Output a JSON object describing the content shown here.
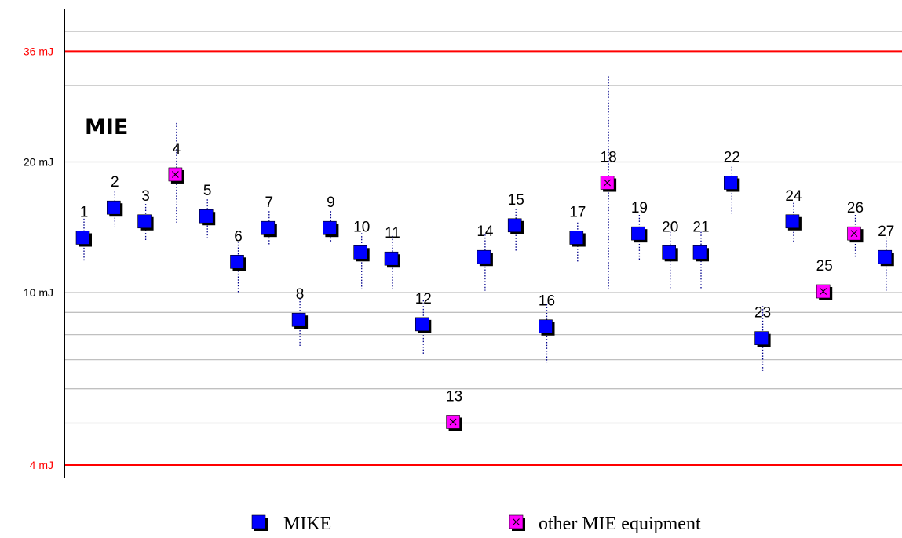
{
  "chart_data": {
    "type": "scatter",
    "title": "MIE",
    "xlabel": "",
    "ylabel": "",
    "y_scale": "log",
    "ylim": [
      3.7,
      56
    ],
    "grid": true,
    "legend_position": "bottom",
    "y_ticks": [
      {
        "value": 4,
        "label": "4 mJ",
        "color": "#ff0000"
      },
      {
        "value": 10,
        "label": "10 mJ",
        "color": "#000000"
      },
      {
        "value": 20,
        "label": "20 mJ",
        "color": "#000000"
      },
      {
        "value": 36,
        "label": "36 mJ",
        "color": "#ff0000"
      }
    ],
    "reference_lines": [
      {
        "value": 4,
        "color": "#ff0000"
      },
      {
        "value": 36,
        "color": "#ff0000"
      }
    ],
    "grid_values": [
      5,
      6,
      7,
      8,
      9,
      10,
      20,
      30,
      40,
      50
    ],
    "series": [
      {
        "name": "MIKE",
        "color": "#0000ff",
        "marker": "square"
      },
      {
        "name": "other MIE equipment",
        "color": "#ff00ff",
        "marker": "square-x"
      }
    ],
    "points": [
      {
        "label": "1",
        "series": 0,
        "y": 13.3,
        "low": 11.8,
        "high": 14.8
      },
      {
        "label": "2",
        "series": 0,
        "y": 15.6,
        "low": 14.2,
        "high": 17.1
      },
      {
        "label": "3",
        "series": 0,
        "y": 14.5,
        "low": 13.1,
        "high": 16.0
      },
      {
        "label": "4",
        "series": 1,
        "y": 18.6,
        "low": 14.5,
        "high": 24.6
      },
      {
        "label": "5",
        "series": 0,
        "y": 14.9,
        "low": 13.4,
        "high": 16.4
      },
      {
        "label": "6",
        "series": 0,
        "y": 11.7,
        "low": 10.0,
        "high": 13.1
      },
      {
        "label": "7",
        "series": 0,
        "y": 14.0,
        "low": 12.9,
        "high": 15.4
      },
      {
        "label": "8",
        "series": 0,
        "y": 8.6,
        "low": 7.5,
        "high": 9.7
      },
      {
        "label": "9",
        "series": 0,
        "y": 14.0,
        "low": 13.1,
        "high": 15.4
      },
      {
        "label": "10",
        "series": 0,
        "y": 12.3,
        "low": 10.2,
        "high": 13.7
      },
      {
        "label": "11",
        "series": 0,
        "y": 11.9,
        "low": 10.2,
        "high": 13.5
      },
      {
        "label": "12",
        "series": 0,
        "y": 8.4,
        "low": 7.2,
        "high": 9.6
      },
      {
        "label": "13",
        "series": 1,
        "y": 5.0,
        "low": 5.0,
        "high": 5.0
      },
      {
        "label": "14",
        "series": 0,
        "y": 12.0,
        "low": 10.1,
        "high": 13.6
      },
      {
        "label": "15",
        "series": 0,
        "y": 14.2,
        "low": 12.4,
        "high": 15.6
      },
      {
        "label": "16",
        "series": 0,
        "y": 8.3,
        "low": 6.9,
        "high": 9.4
      },
      {
        "label": "17",
        "series": 0,
        "y": 13.3,
        "low": 11.7,
        "high": 14.5
      },
      {
        "label": "18",
        "series": 1,
        "y": 17.8,
        "low": 10.1,
        "high": 31.5
      },
      {
        "label": "19",
        "series": 0,
        "y": 13.6,
        "low": 11.9,
        "high": 15.1
      },
      {
        "label": "20",
        "series": 0,
        "y": 12.3,
        "low": 10.2,
        "high": 13.8
      },
      {
        "label": "21",
        "series": 0,
        "y": 12.3,
        "low": 10.2,
        "high": 13.8
      },
      {
        "label": "22",
        "series": 0,
        "y": 17.8,
        "low": 15.2,
        "high": 19.5
      },
      {
        "label": "23",
        "series": 0,
        "y": 7.8,
        "low": 6.6,
        "high": 9.3
      },
      {
        "label": "24",
        "series": 0,
        "y": 14.5,
        "low": 13.1,
        "high": 16.1
      },
      {
        "label": "25",
        "series": 1,
        "y": 10.0,
        "low": 10.0,
        "high": 10.0
      },
      {
        "label": "26",
        "series": 1,
        "y": 13.6,
        "low": 12.0,
        "high": 15.1
      },
      {
        "label": "27",
        "series": 0,
        "y": 12.0,
        "low": 10.1,
        "high": 13.4
      }
    ]
  }
}
